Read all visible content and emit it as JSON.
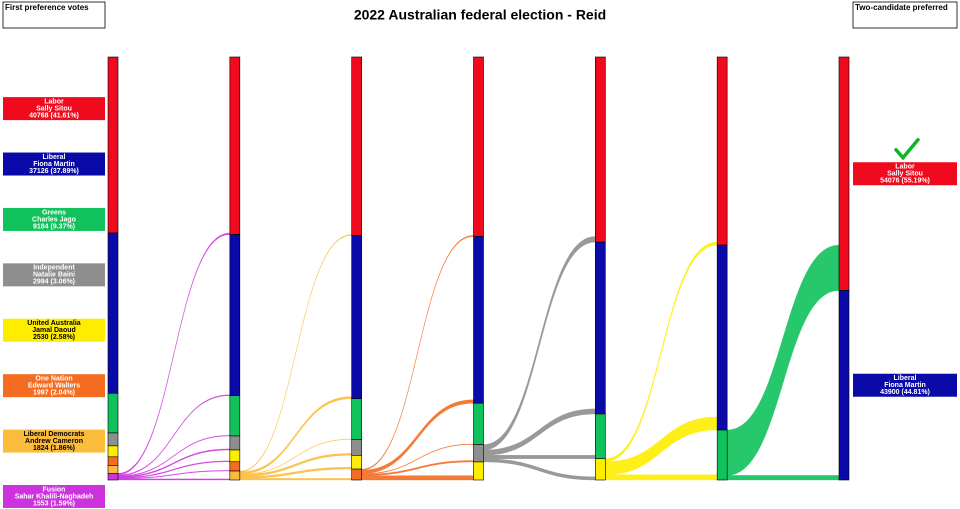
{
  "chart_data": {
    "type": "sankey",
    "title": "2022 Australian federal election - Reid",
    "left_title": "First preference votes",
    "right_title": "Two-candidate preferred",
    "series": [
      {
        "party": "Labor",
        "name": "Sally Sitou",
        "color": "#f00a1e",
        "values": [
          40768,
          41118,
          41318,
          41568,
          42868,
          43568,
          54076
        ],
        "first_label": "40768 (41.61%)",
        "final_label": "54076 (55.19%)"
      },
      {
        "party": "Liberal",
        "name": "Fiona Martin",
        "color": "#0a0aa8",
        "values": [
          37126,
          37326,
          37826,
          38626,
          39826,
          42826,
          43900
        ],
        "first_label": "37126 (37.89%)",
        "final_label": "43900 (44.81%)"
      },
      {
        "party": "Greens",
        "name": "Charles Jago",
        "color": "#10c25b",
        "values": [
          9184,
          9334,
          9434,
          9558,
          10358,
          11582,
          null
        ],
        "first_label": "9184 (9.37%)"
      },
      {
        "party": "Independent",
        "name": "Natalie Baini",
        "color": "#8e8e8e",
        "values": [
          2994,
          3244,
          3694,
          4044,
          null,
          null,
          null
        ],
        "first_label": "2994 (3.06%)"
      },
      {
        "party": "United Australia",
        "name": "Jamal Daoud",
        "color": "#ffed00",
        "values": [
          2530,
          2730,
          3180,
          4180,
          4924,
          null,
          null
        ],
        "first_label": "2530 (2.58%)"
      },
      {
        "party": "One Nation",
        "name": "Edward Walters",
        "color": "#f36c21",
        "values": [
          1997,
          2147,
          2524,
          null,
          null,
          null,
          null
        ],
        "first_label": "1997 (2.04%)"
      },
      {
        "party": "Liberal Democrats",
        "name": "Andrew Cameron",
        "color": "#fbbc3c",
        "values": [
          1824,
          2077,
          null,
          null,
          null,
          null,
          null
        ],
        "first_label": "1824 (1.86%)"
      },
      {
        "party": "Fusion",
        "name": "Sahar Khalili-Naghadeh",
        "color": "#cc33dd",
        "values": [
          1553,
          null,
          null,
          null,
          null,
          null,
          null
        ],
        "first_label": "1553 (1.59%)"
      }
    ]
  }
}
